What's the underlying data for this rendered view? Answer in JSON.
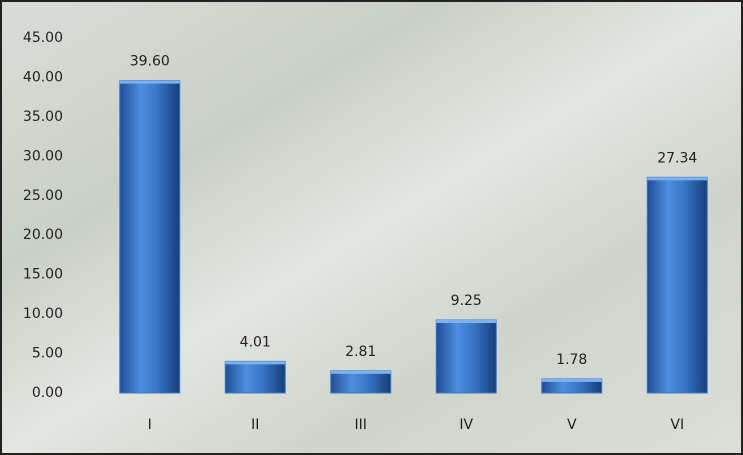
{
  "chart_data": {
    "type": "bar",
    "categories": [
      "I",
      "II",
      "III",
      "IV",
      "V",
      "VI"
    ],
    "values": [
      39.6,
      4.01,
      2.81,
      9.25,
      1.78,
      27.34
    ],
    "value_labels": [
      "39.60",
      "4.01",
      "2.81",
      "9.25",
      "1.78",
      "27.34"
    ],
    "color": "#3a78c8",
    "ylim": [
      0,
      45
    ],
    "yticks": [
      {
        "value": 0,
        "label": "0.00"
      },
      {
        "value": 5,
        "label": "5.00"
      },
      {
        "value": 10,
        "label": "10.00"
      },
      {
        "value": 15,
        "label": "15.00"
      },
      {
        "value": 20,
        "label": "20.00"
      },
      {
        "value": 25,
        "label": "25.00"
      },
      {
        "value": 30,
        "label": "30.00"
      },
      {
        "value": 35,
        "label": "35.00"
      },
      {
        "value": 40,
        "label": "40.00"
      },
      {
        "value": 45,
        "label": "45.00"
      }
    ],
    "grid": false
  }
}
